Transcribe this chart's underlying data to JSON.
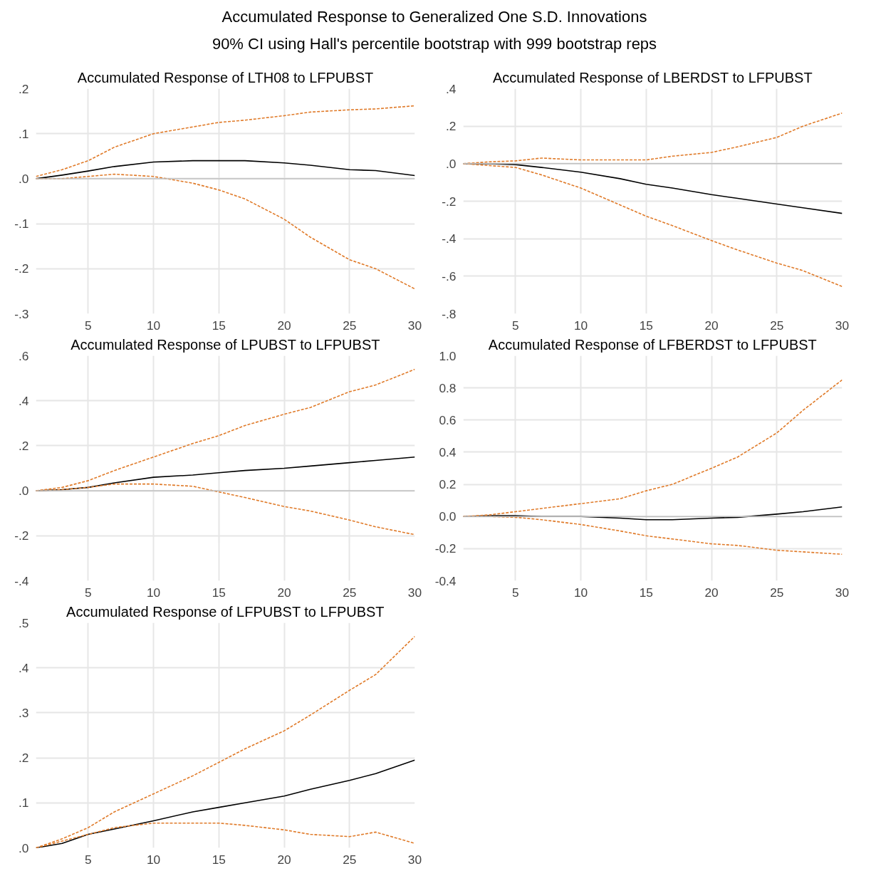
{
  "chart_data": [
    {
      "type": "other",
      "title": "Accumulated Response to Generalized One S.D. Innovations",
      "subtitle": "90% CI using Hall's percentile bootstrap with 999 bootstrap reps"
    },
    {
      "type": "line",
      "title": "Accumulated Response of LTH08 to LFPUBST",
      "x": [
        1,
        3,
        5,
        7,
        10,
        13,
        15,
        17,
        20,
        22,
        25,
        27,
        30
      ],
      "xlim": [
        1,
        30
      ],
      "xticks": [
        5,
        10,
        15,
        20,
        25,
        30
      ],
      "ylim": [
        -0.3,
        0.2
      ],
      "yticks": [
        {
          "value": 0.2,
          "label": ".2"
        },
        {
          "value": 0.1,
          "label": ".1"
        },
        {
          "value": 0,
          "label": ".0"
        },
        {
          "value": -0.1,
          "label": "-.1"
        },
        {
          "value": -0.2,
          "label": "-.2"
        },
        {
          "value": -0.3,
          "label": "-.3"
        }
      ],
      "grid": true,
      "ref_lines": [
        {
          "axis": "y",
          "value": 0,
          "color": "#c0c0c0"
        }
      ],
      "series": [
        {
          "color": "#000000",
          "line_style": "solid",
          "values": [
            0,
            0.008,
            0.017,
            0.027,
            0.037,
            0.04,
            0.04,
            0.04,
            0.035,
            0.03,
            0.02,
            0.018,
            0.007
          ]
        },
        {
          "color": "#e07b2a",
          "line_style": "dashed",
          "values": [
            0.005,
            0.02,
            0.04,
            0.07,
            0.1,
            0.115,
            0.125,
            0.13,
            0.14,
            0.148,
            0.153,
            0.155,
            0.162
          ]
        },
        {
          "color": "#e07b2a",
          "line_style": "dashed",
          "values": [
            0,
            0,
            0.005,
            0.01,
            0.005,
            -0.01,
            -0.025,
            -0.045,
            -0.09,
            -0.13,
            -0.18,
            -0.2,
            -0.245
          ]
        }
      ]
    },
    {
      "type": "line",
      "title": "Accumulated Response of LBERDST to LFPUBST",
      "x": [
        1,
        3,
        5,
        7,
        10,
        13,
        15,
        17,
        20,
        22,
        25,
        27,
        30
      ],
      "xlim": [
        1,
        30
      ],
      "xticks": [
        5,
        10,
        15,
        20,
        25,
        30
      ],
      "ylim": [
        -0.8,
        0.4
      ],
      "yticks": [
        {
          "value": 0.4,
          "label": ".4"
        },
        {
          "value": 0.2,
          "label": ".2"
        },
        {
          "value": 0,
          "label": ".0"
        },
        {
          "value": -0.2,
          "label": "-.2"
        },
        {
          "value": -0.4,
          "label": "-.4"
        },
        {
          "value": -0.6,
          "label": "-.6"
        },
        {
          "value": -0.8,
          "label": "-.8"
        }
      ],
      "grid": true,
      "ref_lines": [
        {
          "axis": "y",
          "value": 0,
          "color": "#c0c0c0"
        }
      ],
      "series": [
        {
          "color": "#000000",
          "line_style": "solid",
          "values": [
            0,
            0,
            -0.005,
            -0.02,
            -0.045,
            -0.08,
            -0.11,
            -0.13,
            -0.165,
            -0.185,
            -0.215,
            -0.235,
            -0.265
          ]
        },
        {
          "color": "#e07b2a",
          "line_style": "dashed",
          "values": [
            0,
            0.01,
            0.015,
            0.03,
            0.02,
            0.02,
            0.02,
            0.04,
            0.06,
            0.09,
            0.14,
            0.2,
            0.27
          ]
        },
        {
          "color": "#e07b2a",
          "line_style": "dashed",
          "values": [
            0,
            -0.01,
            -0.02,
            -0.06,
            -0.13,
            -0.22,
            -0.28,
            -0.33,
            -0.41,
            -0.46,
            -0.53,
            -0.57,
            -0.655
          ]
        }
      ]
    },
    {
      "type": "line",
      "title": "Accumulated Response of LPUBST to LFPUBST",
      "x": [
        1,
        3,
        5,
        7,
        10,
        13,
        15,
        17,
        20,
        22,
        25,
        27,
        30
      ],
      "xlim": [
        1,
        30
      ],
      "xticks": [
        5,
        10,
        15,
        20,
        25,
        30
      ],
      "ylim": [
        -0.4,
        0.6
      ],
      "yticks": [
        {
          "value": 0.6,
          "label": ".6"
        },
        {
          "value": 0.4,
          "label": ".4"
        },
        {
          "value": 0.2,
          "label": ".2"
        },
        {
          "value": 0,
          "label": ".0"
        },
        {
          "value": -0.2,
          "label": "-.2"
        },
        {
          "value": -0.4,
          "label": "-.4"
        }
      ],
      "grid": true,
      "ref_lines": [
        {
          "axis": "y",
          "value": 0,
          "color": "#c0c0c0"
        }
      ],
      "series": [
        {
          "color": "#000000",
          "line_style": "solid",
          "values": [
            0,
            0.005,
            0.015,
            0.035,
            0.06,
            0.07,
            0.08,
            0.09,
            0.1,
            0.11,
            0.125,
            0.135,
            0.15
          ]
        },
        {
          "color": "#e07b2a",
          "line_style": "dashed",
          "values": [
            0,
            0.015,
            0.045,
            0.09,
            0.15,
            0.21,
            0.245,
            0.29,
            0.34,
            0.37,
            0.44,
            0.47,
            0.54
          ]
        },
        {
          "color": "#e07b2a",
          "line_style": "dashed",
          "values": [
            0,
            0.005,
            0.015,
            0.03,
            0.03,
            0.02,
            -0.005,
            -0.03,
            -0.07,
            -0.09,
            -0.13,
            -0.16,
            -0.195
          ]
        }
      ]
    },
    {
      "type": "line",
      "title": "Accumulated Response of LFBERDST to LFPUBST",
      "x": [
        1,
        3,
        5,
        7,
        10,
        13,
        15,
        17,
        20,
        22,
        25,
        27,
        30
      ],
      "xlim": [
        1,
        30
      ],
      "xticks": [
        5,
        10,
        15,
        20,
        25,
        30
      ],
      "ylim": [
        -0.4,
        1.0
      ],
      "yticks": [
        {
          "value": 1.0,
          "label": "1.0"
        },
        {
          "value": 0.8,
          "label": "0.8"
        },
        {
          "value": 0.6,
          "label": "0.6"
        },
        {
          "value": 0.4,
          "label": "0.4"
        },
        {
          "value": 0.2,
          "label": "0.2"
        },
        {
          "value": 0,
          "label": "0.0"
        },
        {
          "value": -0.2,
          "label": "-0.2"
        },
        {
          "value": -0.4,
          "label": "-0.4"
        }
      ],
      "grid": true,
      "ref_lines": [
        {
          "axis": "y",
          "value": 0,
          "color": "#c0c0c0"
        }
      ],
      "series": [
        {
          "color": "#000000",
          "line_style": "solid",
          "values": [
            0,
            0.005,
            0.005,
            0,
            0,
            -0.01,
            -0.02,
            -0.02,
            -0.01,
            -0.005,
            0.015,
            0.03,
            0.06
          ]
        },
        {
          "color": "#e07b2a",
          "line_style": "dashed",
          "values": [
            0,
            0.01,
            0.03,
            0.05,
            0.08,
            0.11,
            0.16,
            0.2,
            0.3,
            0.37,
            0.52,
            0.66,
            0.85
          ]
        },
        {
          "color": "#e07b2a",
          "line_style": "dashed",
          "values": [
            0,
            0,
            -0.005,
            -0.02,
            -0.05,
            -0.09,
            -0.12,
            -0.14,
            -0.17,
            -0.18,
            -0.21,
            -0.22,
            -0.235
          ]
        }
      ]
    },
    {
      "type": "line",
      "title": "Accumulated Response of LFPUBST to LFPUBST",
      "x": [
        1,
        3,
        5,
        7,
        10,
        13,
        15,
        17,
        20,
        22,
        25,
        27,
        30
      ],
      "xlim": [
        1,
        30
      ],
      "xticks": [
        5,
        10,
        15,
        20,
        25,
        30
      ],
      "ylim": [
        0,
        0.5
      ],
      "yticks": [
        {
          "value": 0.5,
          "label": ".5"
        },
        {
          "value": 0.4,
          "label": ".4"
        },
        {
          "value": 0.3,
          "label": ".3"
        },
        {
          "value": 0.2,
          "label": ".2"
        },
        {
          "value": 0.1,
          "label": ".1"
        },
        {
          "value": 0,
          "label": ".0"
        }
      ],
      "grid": true,
      "series": [
        {
          "color": "#000000",
          "line_style": "solid",
          "values": [
            0,
            0.01,
            0.03,
            0.042,
            0.06,
            0.08,
            0.09,
            0.1,
            0.115,
            0.13,
            0.15,
            0.165,
            0.195
          ]
        },
        {
          "color": "#e07b2a",
          "line_style": "dashed",
          "values": [
            0,
            0.02,
            0.045,
            0.08,
            0.12,
            0.16,
            0.19,
            0.22,
            0.26,
            0.295,
            0.35,
            0.385,
            0.47
          ]
        },
        {
          "color": "#e07b2a",
          "line_style": "dashed",
          "values": [
            0,
            0.015,
            0.03,
            0.045,
            0.055,
            0.055,
            0.055,
            0.05,
            0.04,
            0.03,
            0.025,
            0.035,
            0.01
          ]
        }
      ]
    }
  ]
}
